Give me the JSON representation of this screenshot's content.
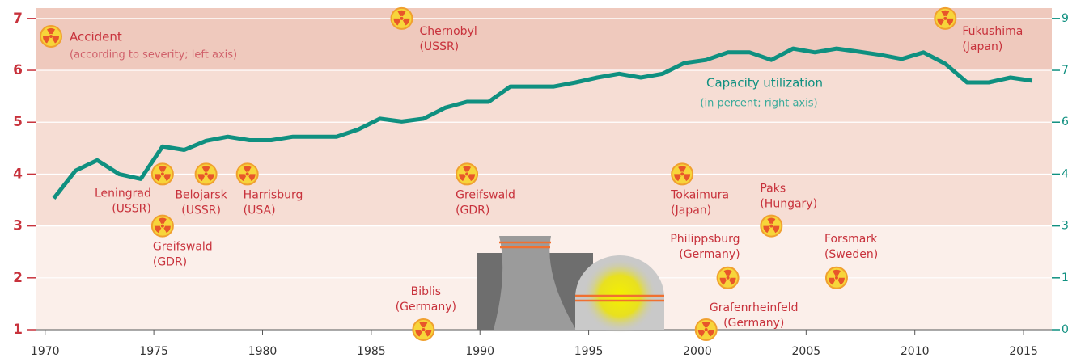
{
  "chart_data": {
    "type": "line",
    "x": [
      1970.4,
      1971.4,
      1972.4,
      1973.4,
      1974.4,
      1975.4,
      1976.4,
      1977.4,
      1978.4,
      1979.4,
      1980.4,
      1981.4,
      1982.4,
      1983.4,
      1984.4,
      1985.4,
      1986.4,
      1987.4,
      1988.4,
      1989.4,
      1990.4,
      1991.4,
      1992.4,
      1993.4,
      1994.4,
      1995.4,
      1996.4,
      1997.4,
      1998.4,
      1999.4,
      2000.4,
      2001.4,
      2002.4,
      2003.4,
      2004.4,
      2005.4,
      2006.4,
      2007.4,
      2008.4,
      2009.4,
      2010.4,
      2011.4,
      2012.4,
      2013.4,
      2014.4,
      2015.4
    ],
    "series": [
      {
        "name": "Capacity utilization",
        "note": "(in percent; right axis)",
        "color": "#0f9080",
        "axis": "y2",
        "values": [
          38,
          46,
          49,
          45,
          43.6,
          53,
          52,
          54.6,
          55.8,
          54.8,
          54.8,
          55.8,
          55.8,
          55.8,
          57.9,
          61,
          60.2,
          61,
          64.2,
          65.9,
          65.9,
          70.3,
          70.3,
          70.3,
          71.5,
          72.9,
          74,
          72.9,
          74,
          77.1,
          78,
          80.2,
          80.2,
          78,
          81.3,
          80.2,
          81.3,
          80.4,
          79.5,
          78.3,
          80.2,
          76.9,
          71.5,
          71.5,
          72.9,
          72
        ]
      }
    ],
    "accidents": {
      "name": "Accident",
      "note": "(according to severity; left axis)",
      "color": "#f7d53a",
      "items": [
        {
          "name": "Chernobyl",
          "place": "(USSR)",
          "x": 1986.4,
          "y": 7
        },
        {
          "name": "Fukushima",
          "place": "(Japan)",
          "x": 2011.4,
          "y": 7
        },
        {
          "name": "Leningrad",
          "place": "(USSR)",
          "x": 1975.4,
          "y": 4
        },
        {
          "name": "Greifswald",
          "place": "(GDR)",
          "x": 1975.4,
          "y": 3
        },
        {
          "name": "Belojarsk",
          "place": "(USSR)",
          "x": 1977.4,
          "y": 4
        },
        {
          "name": "Harrisburg",
          "place": "(USA)",
          "x": 1979.3,
          "y": 4
        },
        {
          "name": "Greifswald",
          "place": "(GDR)",
          "x": 1989.4,
          "y": 4
        },
        {
          "name": "Tokaimura",
          "place": "(Japan)",
          "x": 1999.3,
          "y": 4
        },
        {
          "name": "Biblis",
          "place": "(Germany)",
          "x": 1987.4,
          "y": 1
        },
        {
          "name": "Grafenrheinfeld",
          "place": "(Germany)",
          "x": 2000.4,
          "y": 1
        },
        {
          "name": "Philippsburg",
          "place": "(Germany)",
          "x": 2001.4,
          "y": 2
        },
        {
          "name": "Paks",
          "place": "(Hungary)",
          "x": 2003.4,
          "y": 3
        },
        {
          "name": "Forsmark",
          "place": "(Sweden)",
          "x": 2006.4,
          "y": 2
        }
      ]
    },
    "bands": [
      {
        "from": 1,
        "to": 3,
        "color": "#fbefea"
      },
      {
        "from": 3,
        "to": 6,
        "color": "#f6ddd4"
      },
      {
        "from": 6,
        "to": 7.2,
        "color": "#efc9bd"
      }
    ],
    "xlim": [
      1969.6,
      2016.3
    ],
    "xticks": [
      1970,
      1975,
      1980,
      1985,
      1990,
      1995,
      2000,
      2005,
      2010,
      2015
    ],
    "ylim": [
      1,
      7.2
    ],
    "yticks": [
      1,
      2,
      3,
      4,
      5,
      6,
      7
    ],
    "y2lim": [
      0,
      93
    ],
    "y2ticks": [
      0,
      15,
      30,
      45,
      60,
      75,
      90
    ],
    "grid": true
  }
}
